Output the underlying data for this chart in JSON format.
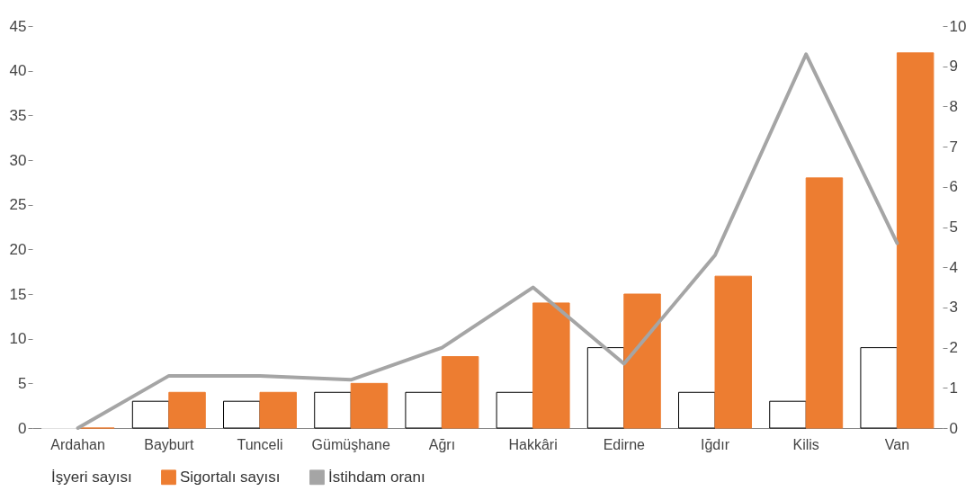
{
  "chart_data": {
    "type": "bar",
    "categories": [
      "Ardahan",
      "Bayburt",
      "Tunceli",
      "Gümüşhane",
      "Ağrı",
      "Hakkâri",
      "Edirne",
      "Iğdır",
      "Kilis",
      "Van"
    ],
    "series": [
      {
        "name": "İşyeri sayısı",
        "color": "#ffffff",
        "values": [
          0,
          3,
          3,
          4,
          4,
          4,
          9,
          4,
          3,
          9
        ]
      },
      {
        "name": "Sigortalı sayısı",
        "color": "#ed7d31",
        "values": [
          0,
          4,
          4,
          5,
          8,
          14,
          15,
          17,
          28,
          42
        ]
      },
      {
        "name": "İstihdam oranı",
        "type": "line",
        "axis": "y2",
        "color": "#a5a5a5",
        "values": [
          0,
          1.3,
          1.3,
          1.2,
          2.0,
          3.5,
          1.6,
          4.3,
          9.3,
          4.6
        ]
      }
    ],
    "ylim": [
      0,
      45
    ],
    "yticks": [
      0,
      5,
      10,
      15,
      20,
      25,
      30,
      35,
      40,
      45
    ],
    "y2lim": [
      0,
      10
    ],
    "y2ticks": [
      0,
      1,
      2,
      3,
      4,
      5,
      6,
      7,
      8,
      9,
      10
    ],
    "grid": false,
    "legend": "bottom"
  }
}
